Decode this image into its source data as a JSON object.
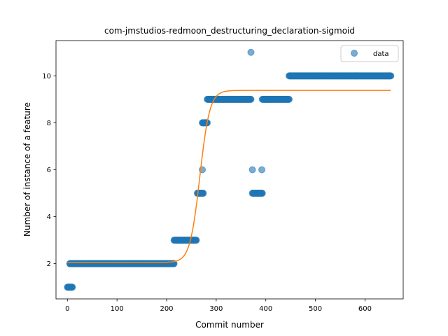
{
  "chart_data": {
    "type": "scatter",
    "title": "com-jmstudios-redmoon_destructuring_declaration-sigmoid",
    "xlabel": "Commit number",
    "ylabel": "Number of instance of a feature",
    "xlim": [
      -23,
      677
    ],
    "ylim": [
      0.5,
      11.5
    ],
    "xticks": [
      0,
      100,
      200,
      300,
      400,
      500,
      600
    ],
    "yticks": [
      2,
      4,
      6,
      8,
      10
    ],
    "grid": false,
    "legend_placement": "top-right",
    "series": [
      {
        "name": "data",
        "kind": "scatter",
        "color": "#1f77b4",
        "segments": [
          {
            "x": [
              0,
              10
            ],
            "y": 1
          },
          {
            "x": 5,
            "y": 2
          },
          {
            "x": [
              5,
              215
            ],
            "y": 2
          },
          {
            "x": [
              215,
              260
            ],
            "y": 3
          },
          {
            "x": [
              262,
              274
            ],
            "y": 5
          },
          {
            "x": 272,
            "y": 6
          },
          {
            "x": [
              272,
              282
            ],
            "y": 8
          },
          {
            "x": [
              282,
              370
            ],
            "y": 9
          },
          {
            "x": 370,
            "y": 11
          },
          {
            "x": 373,
            "y": 6
          },
          {
            "x": [
              373,
              393
            ],
            "y": 5
          },
          {
            "x": 392,
            "y": 6
          },
          {
            "x": [
              393,
              447
            ],
            "y": 9
          },
          {
            "x": [
              447,
              652
            ],
            "y": 10
          }
        ]
      },
      {
        "name": "",
        "kind": "line",
        "color": "#ff7f0e",
        "function": "sigmoid",
        "params": {
          "low": 2.05,
          "high": 9.38,
          "x0": 267,
          "k": 0.1
        },
        "x_range": [
          0,
          652
        ]
      }
    ]
  }
}
